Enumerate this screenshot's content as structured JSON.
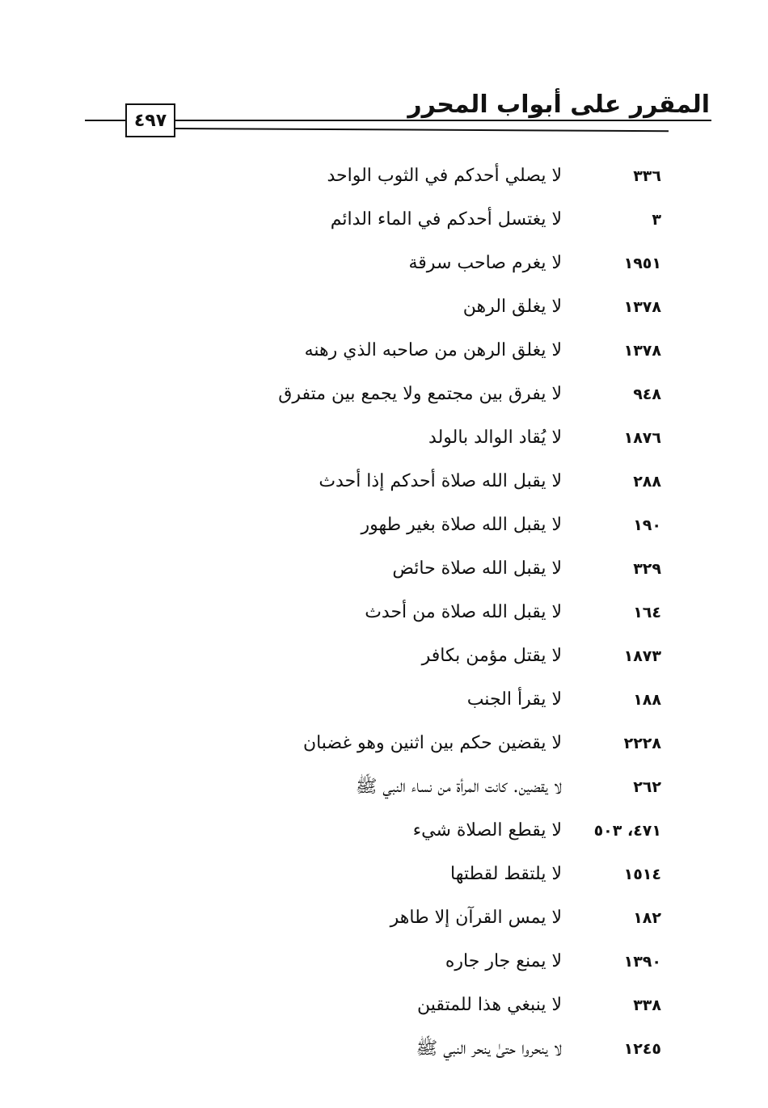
{
  "header": {
    "title": "المقرر على أبواب المحرر",
    "page_number": "٤٩٧"
  },
  "entries": [
    {
      "ref": "٣٣٦",
      "text": "لا يصلي أحدكم في الثوب الواحد"
    },
    {
      "ref": "٣",
      "text": "لا يغتسل أحدكم في الماء الدائم"
    },
    {
      "ref": "١٩٥١",
      "text": "لا يغرم صاحب سرقة"
    },
    {
      "ref": "١٣٧٨",
      "text": "لا يغلق الرهن"
    },
    {
      "ref": "١٣٧٨",
      "text": "لا يغلق الرهن من صاحبه الذي رهنه"
    },
    {
      "ref": "٩٤٨",
      "text": "لا يفرق بين مجتمع ولا يجمع بين متفرق"
    },
    {
      "ref": "١٨٧٦",
      "text": "لا يُقاد الوالد بالولد"
    },
    {
      "ref": "٢٨٨",
      "text": "لا يقبل الله صلاة أحدكم إذا أحدث"
    },
    {
      "ref": "١٩٠",
      "text": "لا يقبل الله صلاة بغير طهور"
    },
    {
      "ref": "٣٢٩",
      "text": "لا يقبل الله صلاة حائض"
    },
    {
      "ref": "١٦٤",
      "text": "لا يقبل الله صلاة من أحدث"
    },
    {
      "ref": "١٨٧٣",
      "text": "لا يقتل مؤمن بكافر"
    },
    {
      "ref": "١٨٨",
      "text": "لا يقرأ الجنب"
    },
    {
      "ref": "٢٢٢٨",
      "text": "لا يقضين حكم بين اثنين وهو غضبان"
    },
    {
      "ref": "٢٦٢",
      "text": "لا يقضين. كانت المرأة من نساء النبي ﷺ"
    },
    {
      "ref": "٤٧١، ٥٠٣",
      "text": "لا يقطع الصلاة شيء"
    },
    {
      "ref": "١٥١٤",
      "text": "لا يلتقط لقطتها"
    },
    {
      "ref": "١٨٢",
      "text": "لا يمس القرآن إلا طاهر"
    },
    {
      "ref": "١٣٩٠",
      "text": "لا يمنع جار جاره"
    },
    {
      "ref": "٣٣٨",
      "text": "لا ينبغي هذا للمتقين"
    },
    {
      "ref": "١٢٤٥",
      "text": "لا ينحروا حتىٰ ينحر النبي ﷺ"
    }
  ]
}
